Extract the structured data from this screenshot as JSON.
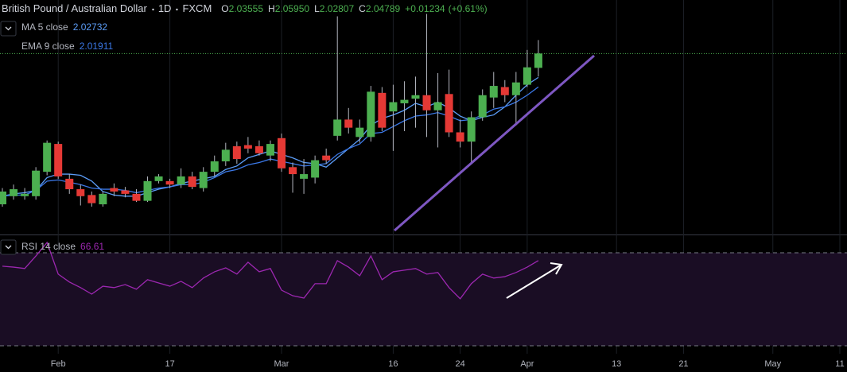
{
  "chart_data": {
    "type": "candlestick",
    "title": "British Pound / Australian Dollar",
    "interval": "1D",
    "source": "FXCM",
    "header_fields": [
      {
        "label": "O",
        "text": "2.03555"
      },
      {
        "label": "H",
        "text": "2.05950"
      },
      {
        "label": "L",
        "text": "2.02807"
      },
      {
        "label": "C",
        "text": "2.04789"
      }
    ],
    "change": "+0.01234",
    "change_pct": "(+0.61%)",
    "categories": [
      null,
      null,
      null,
      null,
      null,
      "Feb",
      null,
      null,
      null,
      null,
      null,
      null,
      null,
      null,
      null,
      "17",
      null,
      null,
      null,
      null,
      null,
      null,
      null,
      null,
      null,
      "Mar",
      null,
      null,
      null,
      null,
      null,
      null,
      null,
      null,
      null,
      "16",
      null,
      null,
      null,
      null,
      null,
      "24",
      null,
      null,
      null,
      null,
      null,
      "Apr",
      null,
      null,
      null,
      null,
      null,
      null,
      null,
      "13",
      null,
      null,
      null,
      null,
      null,
      "21",
      null,
      null,
      null,
      null,
      null,
      null,
      null,
      "May",
      null,
      null,
      null,
      null,
      null,
      "11"
    ],
    "open": [
      1.918,
      1.925,
      1.925,
      1.925,
      1.946,
      1.97,
      1.94,
      1.931,
      1.926,
      1.918,
      1.932,
      1.93,
      1.927,
      1.921,
      1.938,
      1.938,
      1.935,
      1.942,
      1.932,
      1.946,
      1.955,
      1.968,
      1.969,
      1.968,
      1.96,
      1.975,
      1.95,
      1.94,
      1.941,
      1.96,
      1.977,
      1.991,
      1.976,
      1.976,
      2.014,
      1.998,
      2.005,
      2.009,
      2.012,
      1.999,
      2.013,
      1.98,
      1.972,
      1.993,
      2.01,
      2.019,
      2.012,
      2.021,
      2.03555,
      null,
      null,
      null,
      null,
      null,
      null,
      null,
      null,
      null,
      null,
      null,
      null,
      null,
      null,
      null,
      null,
      null,
      null,
      null,
      null,
      null,
      null,
      null,
      null,
      null,
      null,
      null
    ],
    "high": [
      1.932,
      1.935,
      1.932,
      1.95,
      1.973,
      1.972,
      1.944,
      1.935,
      1.929,
      1.929,
      1.936,
      1.933,
      1.931,
      1.942,
      1.944,
      1.94,
      1.949,
      1.946,
      1.95,
      1.96,
      1.971,
      1.972,
      1.976,
      1.973,
      1.973,
      1.979,
      1.954,
      1.957,
      1.96,
      1.966,
      2.08,
      2.001,
      1.991,
      2.02,
      2.019,
      2.021,
      2.024,
      2.028,
      2.082,
      2.031,
      2.034,
      1.991,
      1.998,
      2.017,
      2.032,
      2.025,
      2.032,
      2.051,
      2.0595,
      null,
      null,
      null,
      null,
      null,
      null,
      null,
      null,
      null,
      null,
      null,
      null,
      null,
      null,
      null,
      null,
      null,
      null,
      null,
      null,
      null,
      null,
      null,
      null,
      null,
      null,
      null
    ],
    "low": [
      1.916,
      1.922,
      1.922,
      1.922,
      1.943,
      1.94,
      1.927,
      1.917,
      1.916,
      1.916,
      1.925,
      1.924,
      1.92,
      1.92,
      1.936,
      1.932,
      1.932,
      1.931,
      1.929,
      1.942,
      1.951,
      1.953,
      1.962,
      1.96,
      1.955,
      1.946,
      1.928,
      1.927,
      1.936,
      1.953,
      1.973,
      1.979,
      1.971,
      1.972,
      1.981,
      1.964,
      1.981,
      1.984,
      1.976,
      1.967,
      1.976,
      1.967,
      1.953,
      1.99,
      2.001,
      2.006,
      1.986,
      2.019,
      2.02807,
      null,
      null,
      null,
      null,
      null,
      null,
      null,
      null,
      null,
      null,
      null,
      null,
      null,
      null,
      null,
      null,
      null,
      null,
      null,
      null,
      null,
      null,
      null,
      null,
      null,
      null,
      null
    ],
    "close": [
      1.929,
      1.931,
      1.927,
      1.947,
      1.971,
      1.942,
      1.931,
      1.925,
      1.919,
      1.927,
      1.929,
      1.927,
      1.921,
      1.938,
      1.942,
      1.935,
      1.942,
      1.933,
      1.946,
      1.955,
      1.965,
      1.957,
      1.966,
      1.962,
      1.97,
      1.949,
      1.944,
      1.944,
      1.956,
      1.956,
      1.991,
      1.984,
      1.984,
      2.015,
      1.984,
      2.006,
      2.008,
      2.012,
      1.999,
      2.006,
      1.98,
      1.972,
      1.993,
      2.012,
      2.02,
      2.012,
      2.023,
      2.036,
      2.04789,
      null,
      null,
      null,
      null,
      null,
      null,
      null,
      null,
      null,
      null,
      null,
      null,
      null,
      null,
      null,
      null,
      null,
      null,
      null,
      null,
      null,
      null,
      null,
      null,
      null,
      null,
      null
    ],
    "up_color": "#4caf50",
    "down_color": "#e53935",
    "wick_color": "#b2b5be",
    "ylim": [
      1.892,
      2.094
    ],
    "overlays": [
      {
        "name": "MA 5 close",
        "last_label": "2.02732",
        "color": "#5b9cf6",
        "values": [
          1.925,
          1.927,
          1.928,
          1.93,
          1.941,
          1.944,
          1.944,
          1.943,
          1.938,
          1.929,
          1.926,
          1.925,
          1.925,
          1.928,
          1.931,
          1.933,
          1.936,
          1.938,
          1.94,
          1.942,
          1.948,
          1.951,
          1.958,
          1.961,
          1.964,
          1.961,
          1.958,
          1.954,
          1.953,
          1.95,
          1.958,
          1.966,
          1.974,
          1.986,
          1.992,
          1.995,
          1.999,
          2.005,
          2.002,
          2.006,
          2.001,
          1.994,
          1.99,
          1.993,
          1.995,
          2.002,
          2.012,
          2.021,
          2.02732,
          null,
          null,
          null,
          null,
          null,
          null,
          null,
          null,
          null,
          null,
          null,
          null,
          null,
          null,
          null,
          null,
          null,
          null,
          null,
          null,
          null,
          null,
          null,
          null,
          null,
          null,
          null
        ]
      },
      {
        "name": "EMA 9 close",
        "last_label": "2.01911",
        "color": "#3b78e7",
        "values": [
          1.925,
          1.926,
          1.926,
          1.93,
          1.938,
          1.939,
          1.937,
          1.935,
          1.932,
          1.931,
          1.931,
          1.93,
          1.928,
          1.93,
          1.932,
          1.933,
          1.935,
          1.935,
          1.937,
          1.941,
          1.946,
          1.948,
          1.952,
          1.954,
          1.957,
          1.955,
          1.953,
          1.951,
          1.952,
          1.953,
          1.961,
          1.966,
          1.97,
          1.979,
          1.98,
          1.985,
          1.99,
          1.994,
          1.995,
          1.997,
          1.994,
          1.99,
          1.991,
          1.995,
          2.0,
          2.002,
          2.006,
          2.012,
          2.01911,
          null,
          null,
          null,
          null,
          null,
          null,
          null,
          null,
          null,
          null,
          null,
          null,
          null,
          null,
          null,
          null,
          null,
          null,
          null,
          null,
          null,
          null,
          null,
          null,
          null,
          null,
          null
        ]
      }
    ],
    "price_line_color": "#4caf50",
    "rsi": {
      "name": "RSI 14 close",
      "last_label": "66.61",
      "color": "#9c27b0",
      "ylim": [
        18.7,
        77.5
      ],
      "levels": [
        70,
        30
      ],
      "band_color": "#1a0d24",
      "values": [
        64.2,
        63.8,
        63.2,
        68.6,
        74.4,
        60.8,
        57.4,
        55.0,
        52.2,
        55.6,
        55.0,
        56.3,
        54.3,
        58.4,
        57.0,
        55.6,
        57.7,
        55.0,
        59.1,
        61.8,
        63.5,
        60.8,
        65.9,
        61.8,
        63.2,
        53.9,
        51.5,
        50.5,
        56.7,
        56.7,
        66.6,
        63.8,
        60.1,
        68.6,
        58.4,
        61.8,
        62.5,
        63.2,
        60.8,
        61.5,
        55.0,
        50.2,
        56.7,
        60.8,
        59.1,
        59.7,
        61.5,
        63.8,
        66.61,
        null,
        null,
        null,
        null,
        null,
        null,
        null,
        null,
        null,
        null,
        null,
        null,
        null,
        null,
        null,
        null,
        null,
        null,
        null,
        null,
        null,
        null,
        null,
        null,
        null,
        null,
        null
      ]
    }
  }
}
